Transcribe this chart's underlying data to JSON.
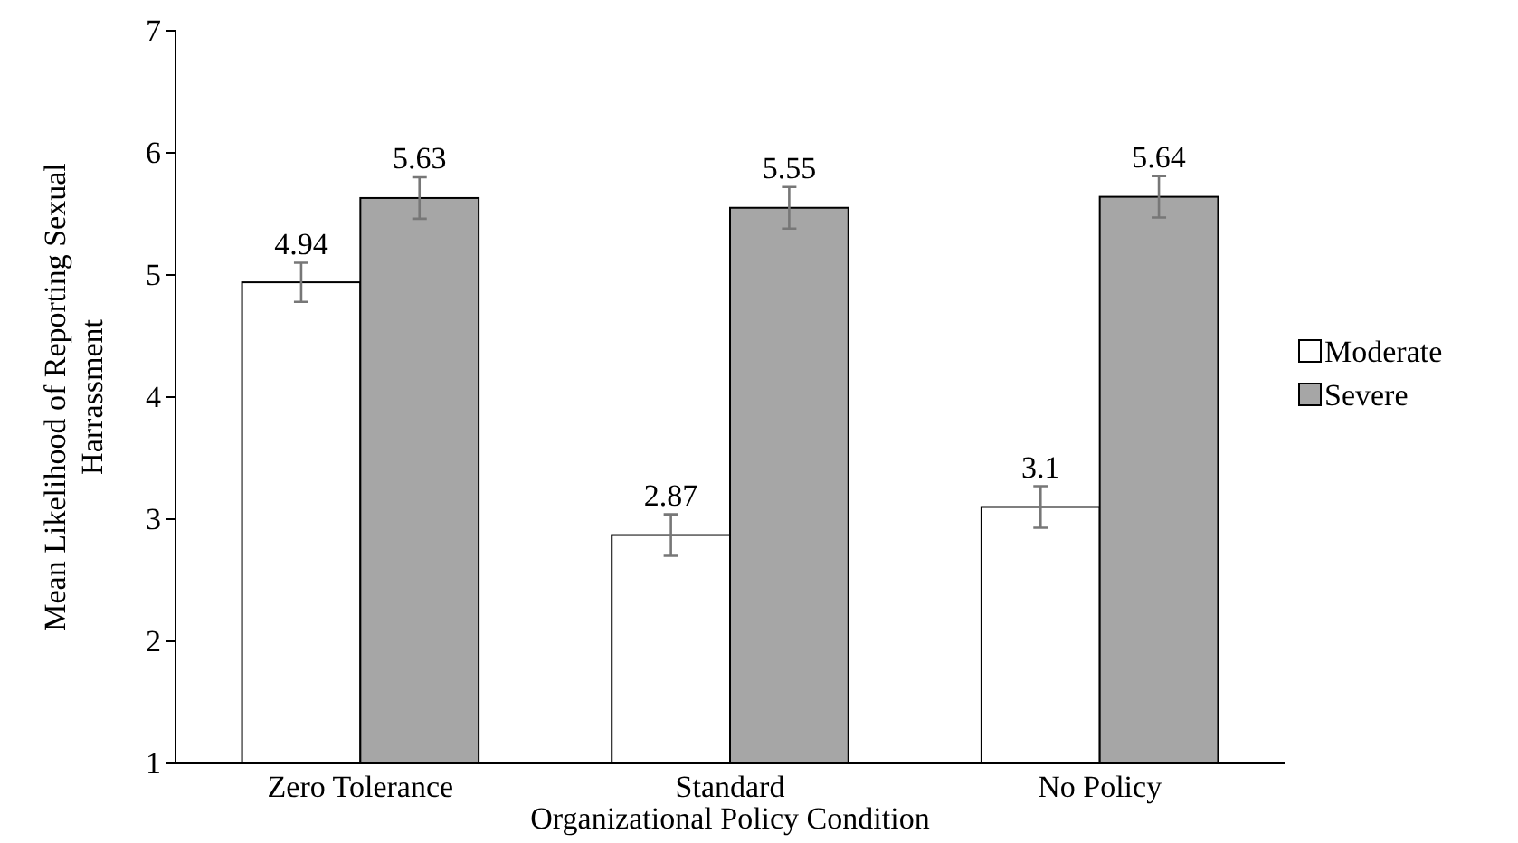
{
  "chart_data": {
    "type": "bar",
    "xlabel": "Organizational Policy Condition",
    "ylabel": "Mean Likelihood of Reporting Sexual Harrassment",
    "categories": [
      "Zero Tolerance",
      "Standard",
      "No Policy"
    ],
    "series": [
      {
        "name": "Moderate",
        "color": "#ffffff",
        "values": [
          4.94,
          2.87,
          3.1
        ],
        "errors": [
          0.16,
          0.17,
          0.17
        ]
      },
      {
        "name": "Severe",
        "color": "#a6a6a6",
        "values": [
          5.63,
          5.55,
          5.64
        ],
        "errors": [
          0.17,
          0.17,
          0.17
        ]
      }
    ],
    "ylim": [
      1,
      7
    ],
    "yticks": [
      1,
      2,
      3,
      4,
      5,
      6,
      7
    ],
    "grid": false,
    "legend": "right",
    "data_labels": true
  }
}
